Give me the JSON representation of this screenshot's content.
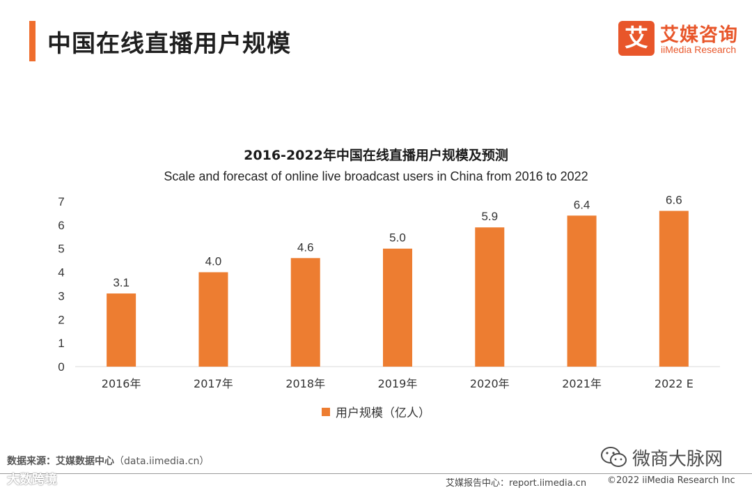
{
  "header": {
    "title": "中国在线直播用户规模",
    "logo_mark": "艾",
    "logo_cn": "艾媒咨询",
    "logo_en": "iiMedia Research"
  },
  "colors": {
    "accent": "#ef6d2d",
    "bar": "#ed7d31",
    "logo": "#e8562a"
  },
  "chart_data": {
    "type": "bar",
    "title": "2016-2022年中国在线直播用户规模及预测",
    "subtitle": "Scale and forecast of online live broadcast users in China from 2016 to 2022",
    "categories": [
      "2016年",
      "2017年",
      "2018年",
      "2019年",
      "2020年",
      "2021年",
      "2022 E"
    ],
    "series": [
      {
        "name": "用户规模（亿人）",
        "values": [
          3.1,
          4.0,
          4.6,
          5.0,
          5.9,
          6.4,
          6.6
        ],
        "labels": [
          "3.1",
          "4.0",
          "4.6",
          "5.0",
          "5.9",
          "6.4",
          "6.6"
        ]
      }
    ],
    "ylim": [
      0,
      7
    ],
    "yticks": [
      "0",
      "1",
      "2",
      "3",
      "4",
      "5",
      "6",
      "7"
    ],
    "grid": false,
    "legend_position": "bottom"
  },
  "footer": {
    "source_label": "数据来源：艾媒数据中心",
    "source_url": "（data.iimedia.cn）",
    "report": "艾媒报告中心：report.iimedia.cn",
    "copyright": "©2022  iiMedia Research  Inc",
    "watermark_left": "大数跨境",
    "watermark_weixin": "微商大脉网"
  }
}
